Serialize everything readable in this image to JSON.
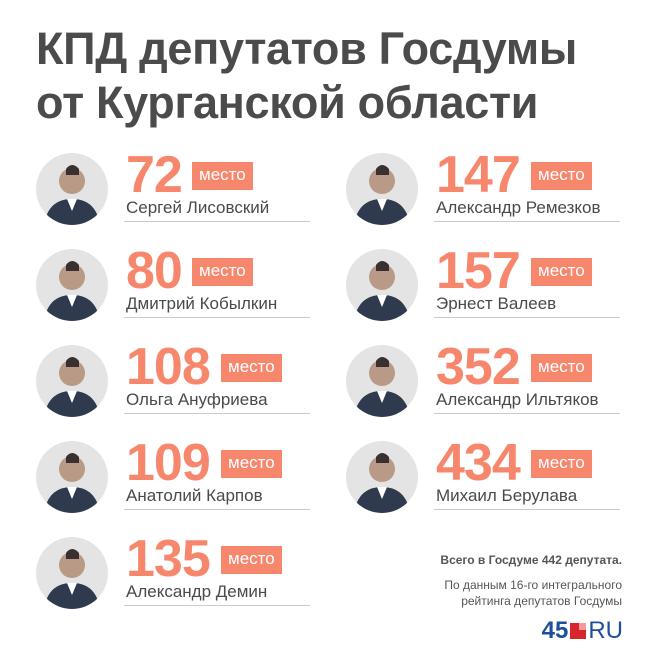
{
  "title": {
    "line1": "КПД депутатов Госдумы",
    "line2": "от Курганской области"
  },
  "badge_label": "место",
  "deputies": [
    {
      "rank": "72",
      "name": "Сергей Лисовский"
    },
    {
      "rank": "80",
      "name": "Дмитрий Кобылкин"
    },
    {
      "rank": "108",
      "name": "Ольга Ануфриева"
    },
    {
      "rank": "109",
      "name": "Анатолий Карпов"
    },
    {
      "rank": "135",
      "name": "Александр Демин"
    },
    {
      "rank": "147",
      "name": "Александр Ремезков"
    },
    {
      "rank": "157",
      "name": "Эрнест Валеев"
    },
    {
      "rank": "352",
      "name": "Александр Ильтяков"
    },
    {
      "rank": "434",
      "name": "Михаил Берулава"
    }
  ],
  "notes": {
    "total": "Всего в Госдуме 442 депутата.",
    "source_line1": "По данным 16-го интегрального",
    "source_line2": "рейтинга депутатов Госдумы"
  },
  "logo": {
    "num": "45",
    "ru": "RU"
  },
  "colors": {
    "accent": "#f7876c",
    "text": "#4a4a4a"
  }
}
